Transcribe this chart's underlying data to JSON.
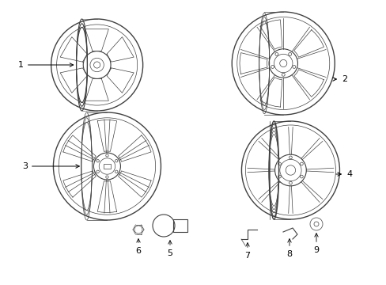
{
  "background_color": "#ffffff",
  "line_color": "#404040",
  "figsize": [
    4.89,
    3.6
  ],
  "dpi": 100,
  "lw_thin": 0.5,
  "lw_med": 0.8,
  "lw_thick": 1.0
}
